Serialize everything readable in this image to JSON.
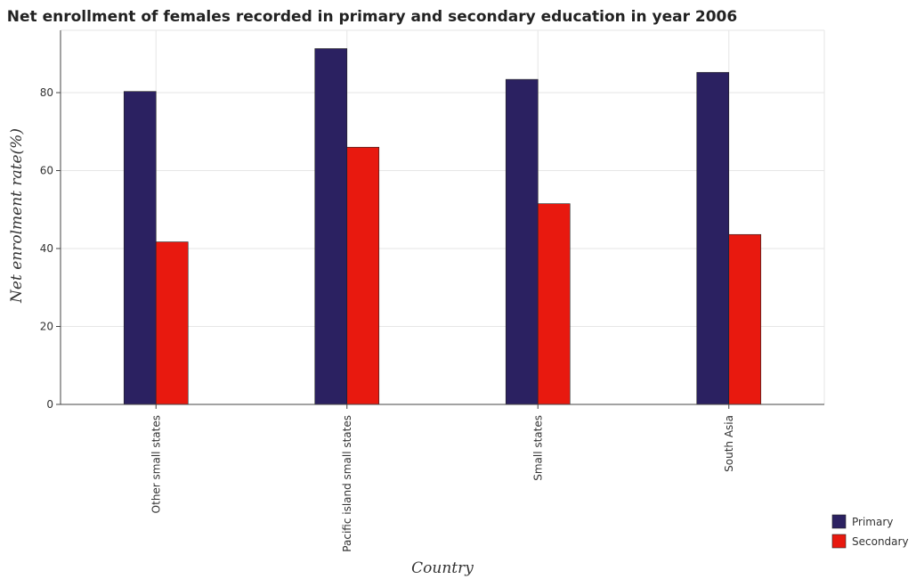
{
  "chart_data": {
    "type": "bar",
    "title": "Net enrollment of females recorded in primary and secondary education in year 2006",
    "xlabel": "Country",
    "ylabel": "Net enrolment rate(%)",
    "categories": [
      "Other small states",
      "Pacific island small states",
      "Small states",
      "South Asia"
    ],
    "series": [
      {
        "name": "Primary",
        "color": "#2b2161",
        "values": [
          80.3,
          91.3,
          83.4,
          85.2
        ]
      },
      {
        "name": "Secondary",
        "color": "#e8190f",
        "values": [
          41.7,
          66.0,
          51.5,
          43.6
        ]
      }
    ],
    "ylim": [
      0,
      96
    ],
    "yticks": [
      0,
      20,
      40,
      60,
      80
    ],
    "grid": true,
    "legend_position": "bottom-right"
  }
}
